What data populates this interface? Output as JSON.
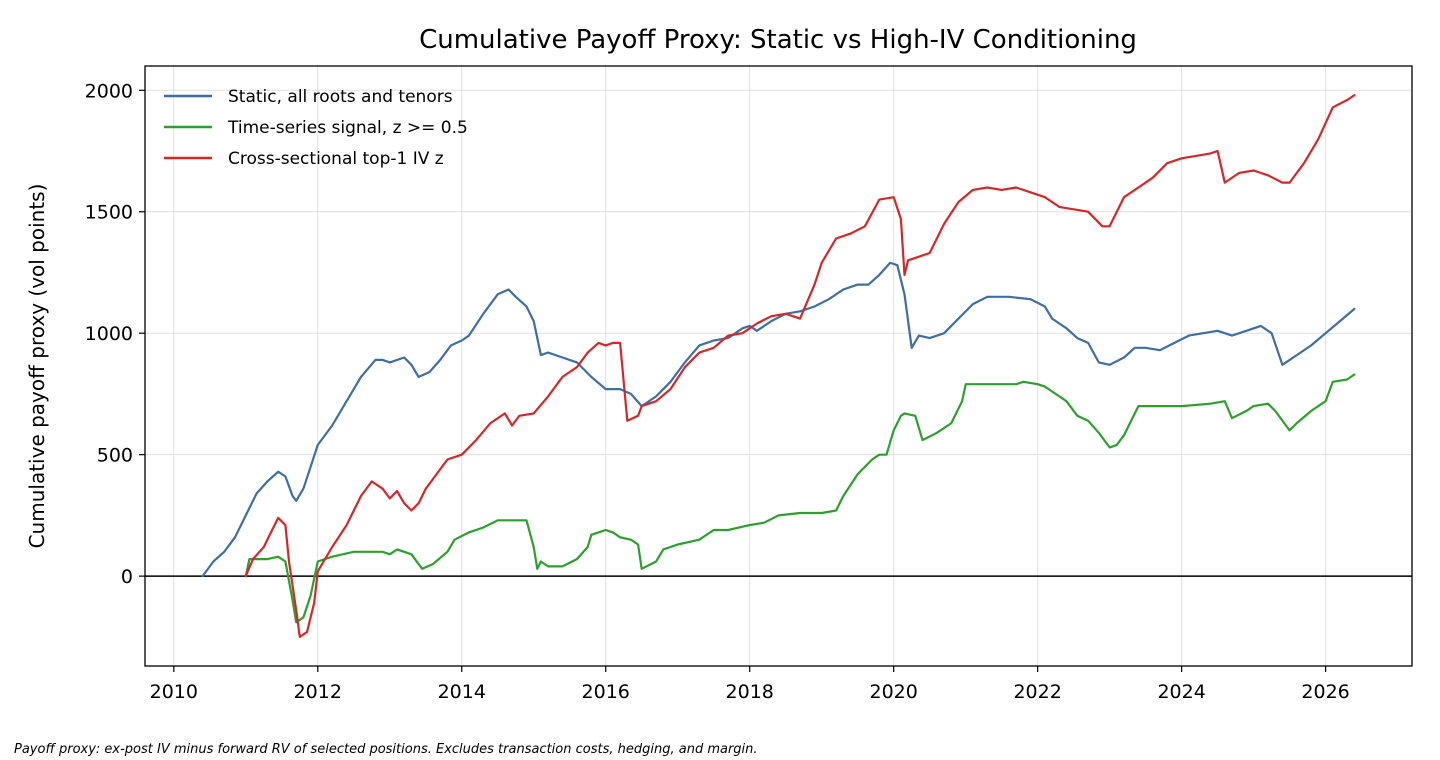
{
  "chart_data": {
    "type": "line",
    "title": "Cumulative Payoff Proxy: Static vs High-IV Conditioning",
    "xlabel": "",
    "ylabel": "Cumulative payoff proxy (vol points)",
    "xlim": [
      2009.6,
      2027.2
    ],
    "ylim": [
      -370,
      2100
    ],
    "x_ticks": [
      2010,
      2012,
      2014,
      2016,
      2018,
      2020,
      2022,
      2024,
      2026
    ],
    "x_tick_labels": [
      "2010",
      "2012",
      "2014",
      "2016",
      "2018",
      "2020",
      "2022",
      "2024",
      "2026"
    ],
    "y_ticks": [
      0,
      500,
      1000,
      1500,
      2000
    ],
    "y_tick_labels": [
      "0",
      "500",
      "1000",
      "1500",
      "2000"
    ],
    "grid": true,
    "zero_line": true,
    "legend_position": "top-left",
    "series": [
      {
        "name": "Static, all roots and tenors",
        "color": "#3e6ea5",
        "x": [
          2010.4,
          2010.55,
          2010.7,
          2010.85,
          2011.0,
          2011.15,
          2011.3,
          2011.45,
          2011.55,
          2011.65,
          2011.7,
          2011.8,
          2011.9,
          2012.0,
          2012.2,
          2012.4,
          2012.6,
          2012.8,
          2012.9,
          2013.0,
          2013.2,
          2013.3,
          2013.4,
          2013.55,
          2013.7,
          2013.85,
          2014.0,
          2014.1,
          2014.3,
          2014.5,
          2014.65,
          2014.75,
          2014.9,
          2015.0,
          2015.1,
          2015.2,
          2015.4,
          2015.6,
          2015.8,
          2016.0,
          2016.2,
          2016.35,
          2016.5,
          2016.7,
          2016.9,
          2017.1,
          2017.3,
          2017.5,
          2017.7,
          2017.9,
          2018.0,
          2018.1,
          2018.3,
          2018.5,
          2018.7,
          2018.9,
          2019.1,
          2019.3,
          2019.5,
          2019.65,
          2019.8,
          2019.95,
          2020.05,
          2020.15,
          2020.25,
          2020.35,
          2020.5,
          2020.7,
          2020.9,
          2021.1,
          2021.3,
          2021.6,
          2021.9,
          2022.1,
          2022.2,
          2022.4,
          2022.55,
          2022.7,
          2022.85,
          2023.0,
          2023.2,
          2023.35,
          2023.5,
          2023.7,
          2023.9,
          2024.1,
          2024.3,
          2024.5,
          2024.7,
          2024.9,
          2025.1,
          2025.25,
          2025.4,
          2025.6,
          2025.8,
          2026.0,
          2026.2,
          2026.4
        ],
        "values": [
          0,
          60,
          100,
          160,
          250,
          340,
          390,
          430,
          410,
          330,
          310,
          360,
          450,
          540,
          620,
          720,
          820,
          890,
          890,
          880,
          900,
          870,
          820,
          840,
          890,
          950,
          970,
          990,
          1080,
          1160,
          1180,
          1150,
          1110,
          1050,
          910,
          920,
          900,
          880,
          820,
          770,
          770,
          750,
          700,
          740,
          800,
          880,
          950,
          970,
          980,
          1020,
          1030,
          1010,
          1050,
          1080,
          1090,
          1110,
          1140,
          1180,
          1200,
          1200,
          1240,
          1290,
          1280,
          1160,
          940,
          990,
          980,
          1000,
          1060,
          1120,
          1150,
          1150,
          1140,
          1110,
          1060,
          1020,
          980,
          960,
          880,
          870,
          900,
          940,
          940,
          930,
          960,
          990,
          1000,
          1010,
          990,
          1010,
          1030,
          1000,
          870,
          910,
          950,
          1000,
          1050,
          1100
        ]
      },
      {
        "name": "Time-series signal, z >= 0.5",
        "color": "#2ca02c",
        "x": [
          2011.0,
          2011.05,
          2011.3,
          2011.45,
          2011.55,
          2011.65,
          2011.7,
          2011.8,
          2011.9,
          2012.0,
          2012.2,
          2012.5,
          2012.9,
          2013.0,
          2013.1,
          2013.2,
          2013.3,
          2013.45,
          2013.6,
          2013.8,
          2013.9,
          2014.1,
          2014.3,
          2014.5,
          2014.8,
          2014.9,
          2015.0,
          2015.05,
          2015.1,
          2015.2,
          2015.4,
          2015.6,
          2015.75,
          2015.8,
          2016.0,
          2016.1,
          2016.2,
          2016.35,
          2016.45,
          2016.5,
          2016.7,
          2016.8,
          2017.0,
          2017.3,
          2017.5,
          2017.7,
          2018.0,
          2018.2,
          2018.4,
          2018.7,
          2018.9,
          2019.0,
          2019.2,
          2019.3,
          2019.5,
          2019.7,
          2019.8,
          2019.9,
          2020.0,
          2020.1,
          2020.15,
          2020.3,
          2020.4,
          2020.6,
          2020.8,
          2020.95,
          2021.0,
          2021.5,
          2021.7,
          2021.8,
          2022.0,
          2022.1,
          2022.2,
          2022.4,
          2022.55,
          2022.7,
          2022.85,
          2023.0,
          2023.1,
          2023.2,
          2023.4,
          2023.8,
          2024.0,
          2024.4,
          2024.6,
          2024.7,
          2024.9,
          2025.0,
          2025.2,
          2025.3,
          2025.5,
          2025.6,
          2025.8,
          2026.0,
          2026.1,
          2026.3,
          2026.4
        ],
        "values": [
          0,
          70,
          70,
          80,
          60,
          -100,
          -190,
          -170,
          -80,
          60,
          80,
          100,
          100,
          90,
          110,
          100,
          90,
          30,
          50,
          100,
          150,
          180,
          200,
          230,
          230,
          230,
          120,
          30,
          60,
          40,
          40,
          70,
          120,
          170,
          190,
          180,
          160,
          150,
          130,
          30,
          60,
          110,
          130,
          150,
          190,
          190,
          210,
          220,
          250,
          260,
          260,
          260,
          270,
          330,
          420,
          480,
          500,
          500,
          600,
          660,
          670,
          660,
          560,
          590,
          630,
          720,
          790,
          790,
          790,
          800,
          790,
          780,
          760,
          720,
          660,
          640,
          590,
          530,
          540,
          580,
          700,
          700,
          700,
          710,
          720,
          650,
          680,
          700,
          710,
          680,
          600,
          630,
          680,
          720,
          800,
          810,
          830
        ]
      },
      {
        "name": "Cross-sectional top-1 IV z",
        "color": "#d62728",
        "x": [
          2011.0,
          2011.1,
          2011.25,
          2011.35,
          2011.45,
          2011.55,
          2011.6,
          2011.7,
          2011.75,
          2011.85,
          2011.95,
          2012.0,
          2012.2,
          2012.4,
          2012.6,
          2012.75,
          2012.9,
          2013.0,
          2013.1,
          2013.2,
          2013.3,
          2013.4,
          2013.5,
          2013.6,
          2013.8,
          2014.0,
          2014.2,
          2014.4,
          2014.6,
          2014.7,
          2014.8,
          2015.0,
          2015.2,
          2015.4,
          2015.6,
          2015.75,
          2015.9,
          2016.0,
          2016.1,
          2016.2,
          2016.3,
          2016.45,
          2016.5,
          2016.7,
          2016.9,
          2017.1,
          2017.3,
          2017.5,
          2017.7,
          2017.9,
          2018.1,
          2018.3,
          2018.5,
          2018.7,
          2018.9,
          2019.0,
          2019.2,
          2019.4,
          2019.6,
          2019.8,
          2020.0,
          2020.1,
          2020.15,
          2020.2,
          2020.3,
          2020.5,
          2020.7,
          2020.9,
          2021.1,
          2021.3,
          2021.5,
          2021.7,
          2021.9,
          2022.1,
          2022.3,
          2022.5,
          2022.7,
          2022.9,
          2023.0,
          2023.2,
          2023.4,
          2023.6,
          2023.8,
          2024.0,
          2024.2,
          2024.4,
          2024.5,
          2024.6,
          2024.8,
          2025.0,
          2025.2,
          2025.4,
          2025.5,
          2025.7,
          2025.9,
          2026.1,
          2026.3,
          2026.4
        ],
        "values": [
          0,
          70,
          120,
          180,
          240,
          210,
          60,
          -140,
          -250,
          -230,
          -110,
          20,
          120,
          210,
          330,
          390,
          360,
          320,
          350,
          300,
          270,
          300,
          360,
          400,
          480,
          500,
          560,
          630,
          670,
          620,
          660,
          670,
          740,
          820,
          860,
          920,
          960,
          950,
          960,
          960,
          640,
          660,
          700,
          720,
          770,
          860,
          920,
          940,
          990,
          1000,
          1040,
          1070,
          1080,
          1060,
          1200,
          1290,
          1390,
          1410,
          1440,
          1550,
          1560,
          1470,
          1240,
          1300,
          1310,
          1330,
          1450,
          1540,
          1590,
          1600,
          1590,
          1600,
          1580,
          1560,
          1520,
          1510,
          1500,
          1440,
          1440,
          1560,
          1600,
          1640,
          1700,
          1720,
          1730,
          1740,
          1750,
          1620,
          1660,
          1670,
          1650,
          1620,
          1620,
          1700,
          1800,
          1930,
          1960,
          1980
        ]
      }
    ],
    "footnote": "Payoff proxy: ex-post IV minus forward RV of selected positions. Excludes transaction costs, hedging, and margin."
  }
}
